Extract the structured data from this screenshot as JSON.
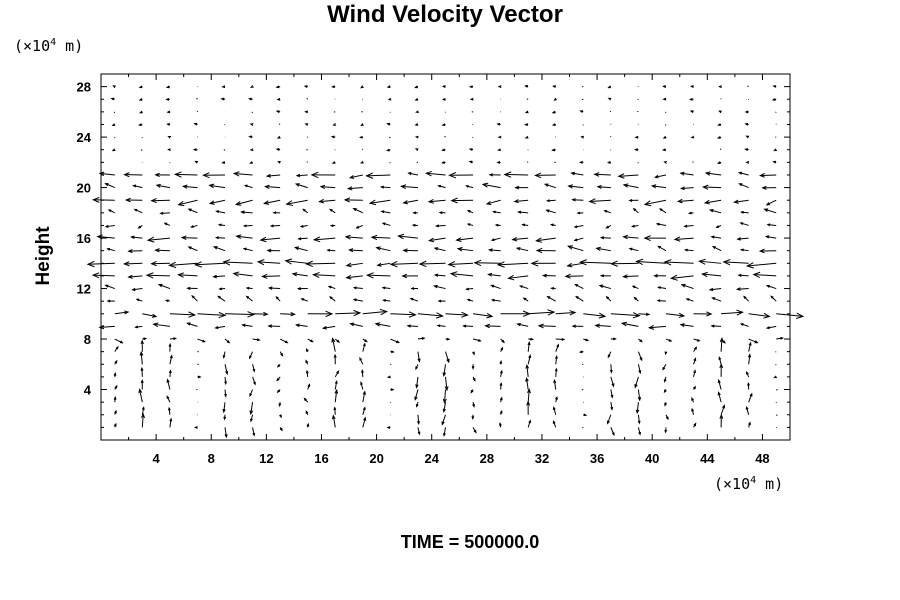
{
  "chart_data": {
    "type": "vector_field",
    "title": "Wind Velocity Vector",
    "ylabel": "Height",
    "y_unit_prefix": "(×10",
    "y_unit_exp": "4",
    "y_unit_suffix": " m)",
    "x_unit_prefix": "(×10",
    "x_unit_exp": "4",
    "x_unit_suffix": " m)",
    "footer": "TIME = 500000.0",
    "xlim": [
      0,
      50
    ],
    "ylim": [
      0,
      29
    ],
    "x_ticks": [
      "4",
      "8",
      "12",
      "16",
      "20",
      "24",
      "28",
      "32",
      "36",
      "40",
      "44",
      "48"
    ],
    "y_ticks": [
      "4",
      "8",
      "12",
      "16",
      "20",
      "24",
      "28"
    ],
    "grid_x_spacing": 2,
    "grid_y_spacing": 1,
    "legend": "none",
    "grid": false,
    "layers": [
      {
        "height": 21,
        "u": -3.2,
        "v": 0.0
      },
      {
        "height": 20,
        "u": -2.4,
        "v": 0.2
      },
      {
        "height": 19,
        "u": -2.8,
        "v": -0.3
      },
      {
        "height": 18,
        "u": -1.5,
        "v": 0.3
      },
      {
        "height": 17,
        "u": -1.2,
        "v": 0.0
      },
      {
        "height": 16,
        "u": -3.0,
        "v": 0.0
      },
      {
        "height": 15,
        "u": -2.6,
        "v": 0.3
      },
      {
        "height": 14,
        "u": -4.0,
        "v": 0.0
      },
      {
        "height": 13,
        "u": -3.0,
        "v": 0.0
      },
      {
        "height": 12,
        "u": -1.5,
        "v": 0.2
      },
      {
        "height": 11,
        "u": -1.2,
        "v": 0.4
      },
      {
        "height": 10,
        "u": 3.8,
        "v": 0.0
      },
      {
        "height": 9,
        "u": -2.2,
        "v": 0.1
      },
      {
        "height": 8,
        "u": 1.2,
        "v": -0.2
      }
    ]
  }
}
